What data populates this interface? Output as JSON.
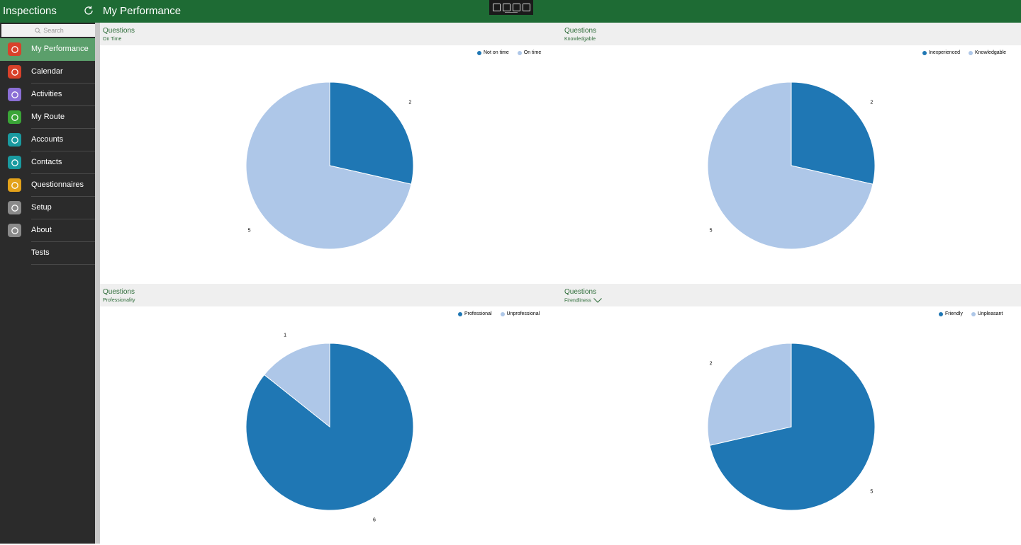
{
  "app": {
    "title": "Inspections",
    "page_title": "My Performance"
  },
  "search": {
    "placeholder": "Search"
  },
  "sidebar": {
    "items": [
      {
        "label": "My Performance",
        "icon": "performance-icon",
        "color": "#d8412a",
        "active": true
      },
      {
        "label": "Calendar",
        "icon": "calendar-icon",
        "color": "#d8412a"
      },
      {
        "label": "Activities",
        "icon": "activities-icon",
        "color": "#8b6fd6"
      },
      {
        "label": "My Route",
        "icon": "route-icon",
        "color": "#3aa537"
      },
      {
        "label": "Accounts",
        "icon": "accounts-icon",
        "color": "#1a9aa0"
      },
      {
        "label": "Contacts",
        "icon": "contacts-icon",
        "color": "#1a9aa0"
      },
      {
        "label": "Questionnaires",
        "icon": "questionnaires-icon",
        "color": "#e3a21a"
      },
      {
        "label": "Setup",
        "icon": "gear-icon",
        "color": "#8a8a8a"
      },
      {
        "label": "About",
        "icon": "info-icon",
        "color": "#8a8a8a"
      },
      {
        "label": "Tests",
        "icon": "",
        "color": ""
      }
    ]
  },
  "colors": {
    "dark": "#1f77b4",
    "light": "#aec7e8",
    "accent": "#1e6b34"
  },
  "chart_data": [
    {
      "type": "pie",
      "title": "Questions",
      "subtitle": "On Time",
      "categories": [
        "Not on time",
        "On time"
      ],
      "values": [
        2,
        5
      ]
    },
    {
      "type": "pie",
      "title": "Questions",
      "subtitle": "Knowledgable",
      "categories": [
        "Inexperienced",
        "Knowledgable"
      ],
      "values": [
        2,
        5
      ]
    },
    {
      "type": "pie",
      "title": "Questions",
      "subtitle": "Professionality",
      "categories": [
        "Professional",
        "Unprofessional"
      ],
      "values": [
        6,
        1
      ]
    },
    {
      "type": "pie",
      "title": "Questions",
      "subtitle": "Firendliness",
      "categories": [
        "Friendly",
        "Unpleasant"
      ],
      "values": [
        5,
        2
      ]
    }
  ]
}
